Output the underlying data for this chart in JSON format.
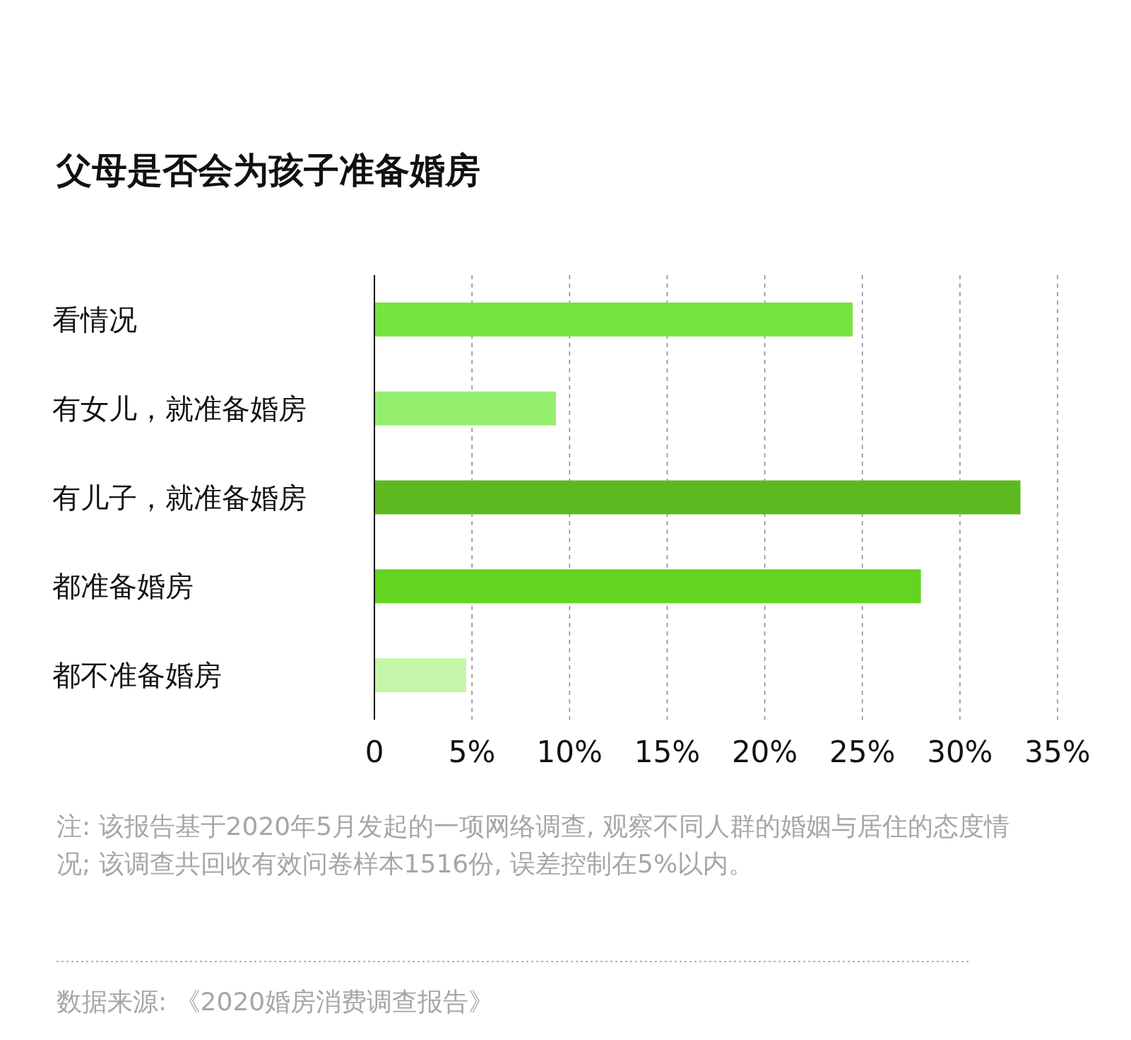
{
  "chart_data": {
    "type": "bar",
    "orientation": "horizontal",
    "title": "父母是否会为孩子准备婚房",
    "categories": [
      "看情况",
      "有女儿，就准备婚房",
      "有儿子，就准备婚房",
      "都准备婚房",
      "都不准备婚房"
    ],
    "values": [
      24.5,
      9.3,
      33.1,
      28.0,
      4.7
    ],
    "colors": [
      "#76e33f",
      "#95ef6e",
      "#5eb81f",
      "#63d420",
      "#c4f5a8"
    ],
    "xlim": [
      0,
      35
    ],
    "xticks": [
      0,
      {
        "value": 5,
        "label": "5%"
      },
      {
        "value": 10,
        "label": "10%"
      },
      {
        "value": 15,
        "label": "15%"
      },
      {
        "value": 20,
        "label": "20%"
      },
      {
        "value": 25,
        "label": "25%"
      },
      {
        "value": 30,
        "label": "30%"
      },
      {
        "value": 35,
        "label": "35%"
      }
    ],
    "grid": "x",
    "annotations": [
      "注: 该报告基于2020年5月发起的一项网络调查, 观察不同人群的婚姻与居住的态度情况; 该调查共回收有效问卷样本1516份, 误差控制在5%以内。",
      "数据来源: 《2020婚房消费调查报告》"
    ]
  }
}
